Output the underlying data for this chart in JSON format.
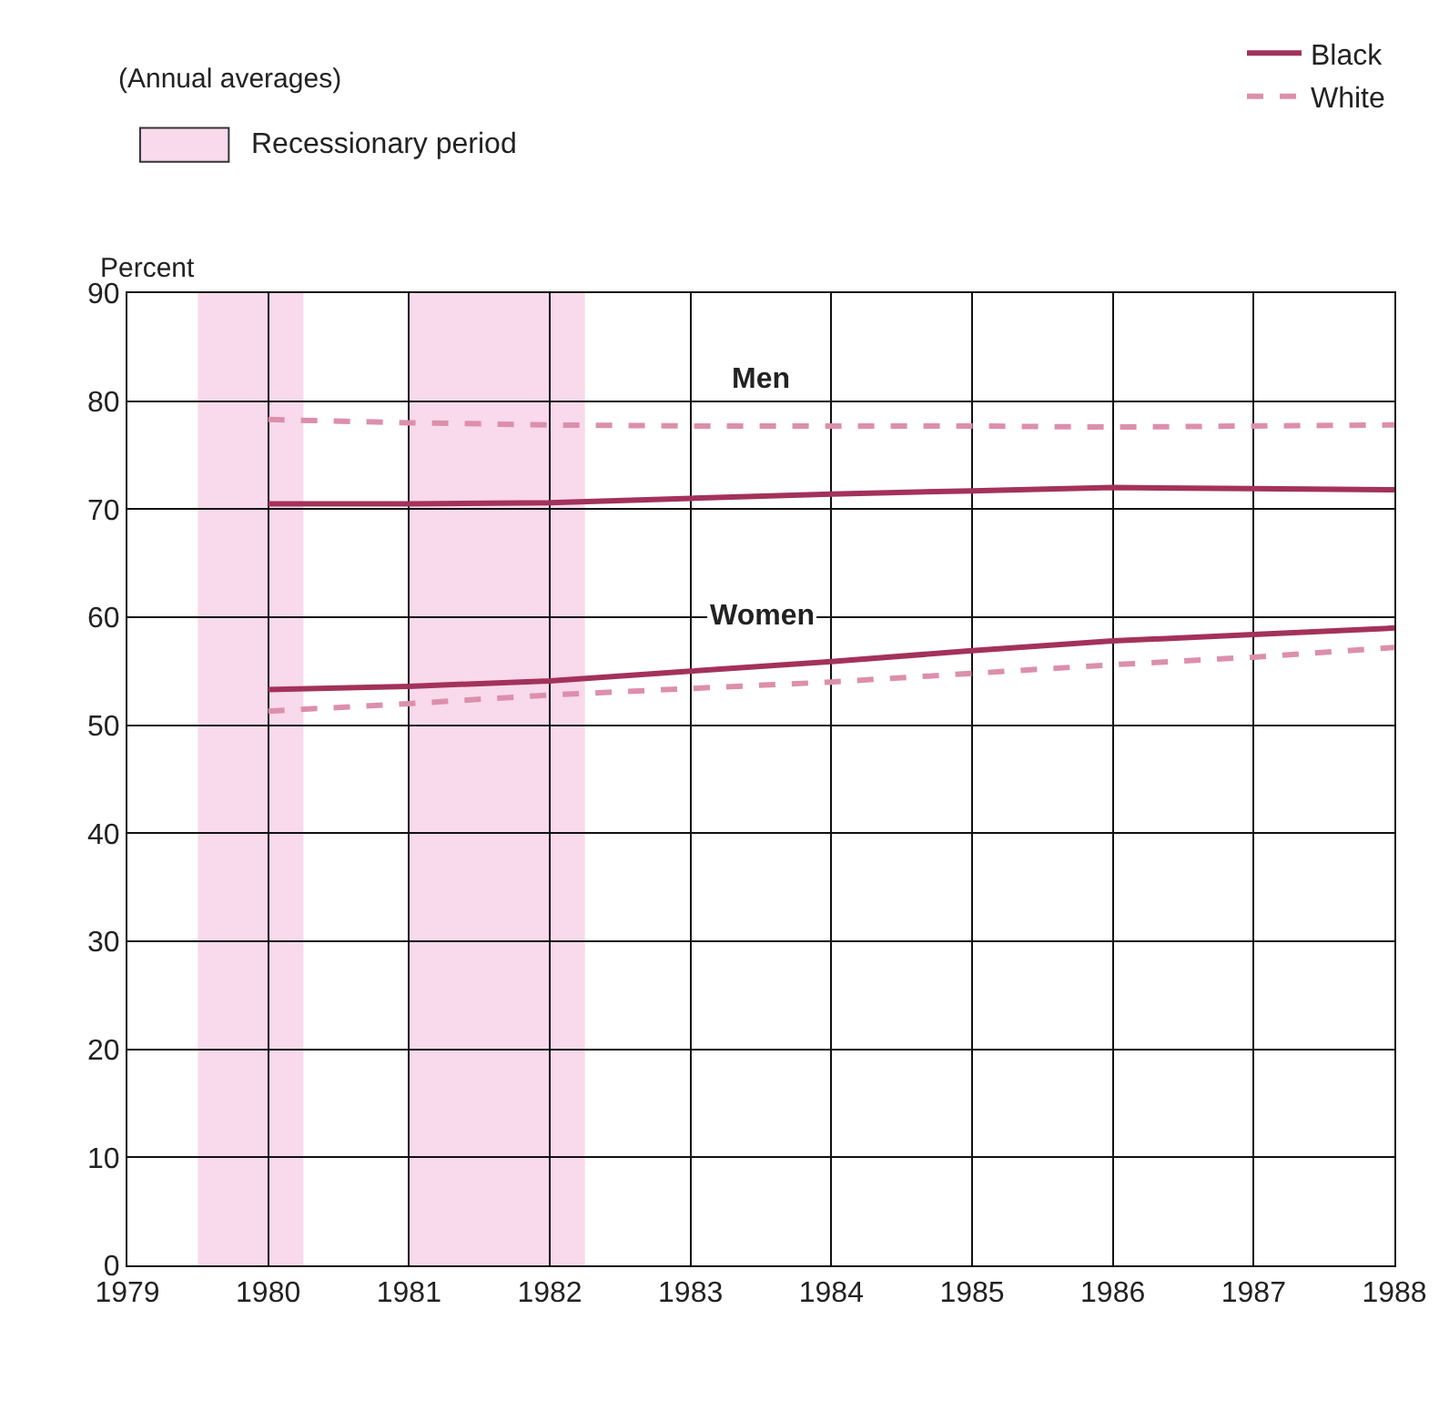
{
  "chart_data": {
    "type": "line",
    "ylabel": "Percent",
    "x": [
      1980,
      1981,
      1982,
      1983,
      1984,
      1985,
      1986,
      1987,
      1988
    ],
    "series": [
      {
        "name": "Black",
        "color": "#a3325a",
        "line_style": "solid",
        "values": [
          70.5,
          70.5,
          70.6,
          71,
          71.4,
          71.7,
          72,
          71.9,
          71.8
        ]
      },
      {
        "name": "White",
        "color": "#dc8fab",
        "line_style": "dashed",
        "values": [
          78.3,
          78,
          77.8,
          77.7,
          77.7,
          77.7,
          77.6,
          77.7,
          77.8
        ]
      },
      {
        "color": "#a3325a",
        "line_style": "solid",
        "values": [
          53.3,
          53.6,
          54.1,
          55,
          55.9,
          56.9,
          57.8,
          58.4,
          59
        ]
      },
      {
        "color": "#dc8fab",
        "line_style": "dashed",
        "values": [
          51.3,
          52,
          52.8,
          53.4,
          54,
          54.8,
          55.6,
          56.3,
          57.2
        ]
      }
    ],
    "xlim": [
      1979,
      1988
    ],
    "xticks": [
      1979,
      1980,
      1981,
      1982,
      1983,
      1984,
      1985,
      1986,
      1987,
      1988
    ],
    "ylim": [
      0,
      90
    ],
    "yticks": [
      0,
      10,
      20,
      30,
      40,
      50,
      60,
      70,
      80,
      90
    ],
    "grid": true,
    "legend": "top right",
    "marker": "none",
    "bands": [
      {
        "axis": "x",
        "from": 1979.5,
        "to": 1980.25,
        "color": "#f9d9ec",
        "label": "Recessionary period"
      },
      {
        "axis": "x",
        "from": 1981,
        "to": 1982.25,
        "color": "#f9d9ec"
      }
    ],
    "annotations": [
      "(Annual averages)",
      {
        "text": "Men",
        "x": 1983.5,
        "y": 82
      },
      "Women"
    ]
  }
}
